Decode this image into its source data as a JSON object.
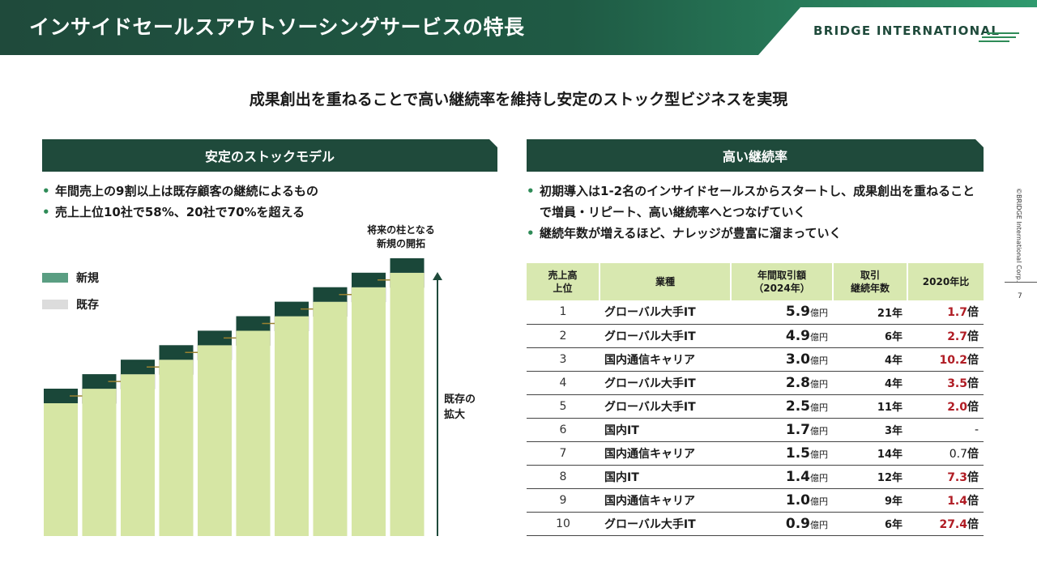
{
  "header": {
    "title": "インサイドセールスアウトソーシングサービスの特長",
    "logo_text": "BRIDGE INTERNATIONAL"
  },
  "subtitle": "成果創出を重ねることで高い継続率を維持し安定のストック型ビジネスを実現",
  "left": {
    "section_title": "安定のストックモデル",
    "bullets": [
      "年間売上の9割以上は既存顧客の継続によるもの",
      "売上上位10社で58%、20社で70%を超える"
    ],
    "legend_new": "新規",
    "legend_existing": "既存",
    "annotation_top": [
      "将来の柱となる",
      "新規の開拓"
    ],
    "annotation_side": [
      "既存の",
      "拡大"
    ]
  },
  "right": {
    "section_title": "高い継続率",
    "bullets": [
      "初期導入は1-2名のインサイドセールスからスタートし、成果創出を重ねることで増員・リピート、高い継続率へとつなげていく",
      "継続年数が増えるほど、ナレッジが豊富に溜まっていく"
    ]
  },
  "table": {
    "headers": {
      "rank": [
        "売上高",
        "上位"
      ],
      "industry": "業種",
      "amount": [
        "年間取引額",
        "（2024年）"
      ],
      "years": [
        "取引",
        "継続年数"
      ],
      "ratio": "2020年比"
    },
    "amount_unit": "億円",
    "rows": [
      {
        "rank": "1",
        "industry": "グローバル大手IT",
        "amount": "5.9",
        "years": "21年",
        "ratio": "1.7",
        "ratio_suffix": "倍",
        "highlight": true
      },
      {
        "rank": "2",
        "industry": "グローバル大手IT",
        "amount": "4.9",
        "years": "6年",
        "ratio": "2.7",
        "ratio_suffix": "倍",
        "highlight": true
      },
      {
        "rank": "3",
        "industry": "国内通信キャリア",
        "amount": "3.0",
        "years": "4年",
        "ratio": "10.2",
        "ratio_suffix": "倍",
        "highlight": true
      },
      {
        "rank": "4",
        "industry": "グローバル大手IT",
        "amount": "2.8",
        "years": "4年",
        "ratio": "3.5",
        "ratio_suffix": "倍",
        "highlight": true
      },
      {
        "rank": "5",
        "industry": "グローバル大手IT",
        "amount": "2.5",
        "years": "11年",
        "ratio": "2.0",
        "ratio_suffix": "倍",
        "highlight": true
      },
      {
        "rank": "6",
        "industry": "国内IT",
        "amount": "1.7",
        "years": "3年",
        "ratio": "-",
        "ratio_suffix": "",
        "highlight": false
      },
      {
        "rank": "7",
        "industry": "国内通信キャリア",
        "amount": "1.5",
        "years": "14年",
        "ratio": "0.7",
        "ratio_suffix": "倍",
        "highlight": false
      },
      {
        "rank": "8",
        "industry": "国内IT",
        "amount": "1.4",
        "years": "12年",
        "ratio": "7.3",
        "ratio_suffix": "倍",
        "highlight": true
      },
      {
        "rank": "9",
        "industry": "国内通信キャリア",
        "amount": "1.0",
        "years": "9年",
        "ratio": "1.4",
        "ratio_suffix": "倍",
        "highlight": true
      },
      {
        "rank": "10",
        "industry": "グローバル大手IT",
        "amount": "0.9",
        "years": "6年",
        "ratio": "27.4",
        "ratio_suffix": "倍",
        "highlight": true
      }
    ]
  },
  "side_copyright": "©BRIDGE International Corp.",
  "page_number": "7",
  "colors": {
    "header_dark": "#1f4a3b",
    "header_light": "#2f9a6e",
    "stock_bar": "#d6e6a4",
    "new_block": "#1a4739",
    "legend_new": "#5a9e82",
    "legend_existing": "#dcdcdc",
    "arrow": "#9a8130",
    "ratio_red": "#b01c24",
    "table_header": "#d8e8b0"
  }
}
